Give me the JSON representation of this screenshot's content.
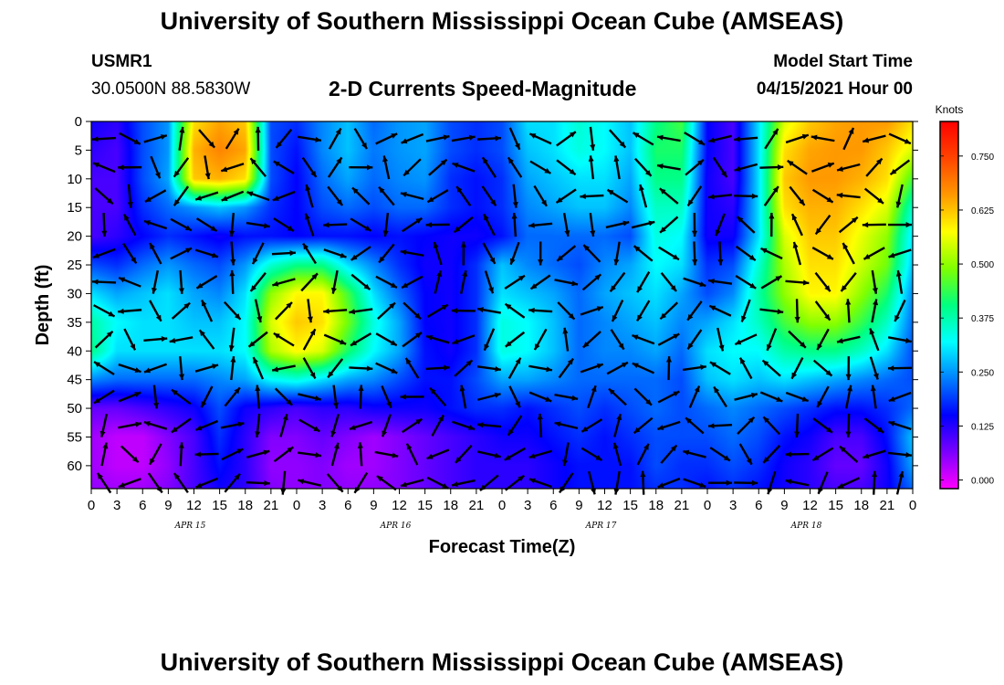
{
  "header": {
    "title": "University of Southern Mississippi Ocean Cube (AMSEAS)",
    "station": "USMR1",
    "location": "30.0500N  88.5830W",
    "subtitle": "2-D Currents Speed-Magnitude",
    "model_start_label": "Model Start Time",
    "model_start_value": "04/15/2021 Hour 00"
  },
  "footer": {
    "title": "University of Southern Mississippi Ocean Cube (AMSEAS)"
  },
  "chart_data": {
    "type": "heatmap",
    "title": "2-D Currents Speed-Magnitude",
    "xlabel": "Forecast Time(Z)",
    "ylabel": "Depth (ft)",
    "x_tick_labels": [
      "0",
      "3",
      "6",
      "9",
      "12",
      "15",
      "18",
      "21",
      "0",
      "3",
      "6",
      "9",
      "12",
      "15",
      "18",
      "21",
      "0",
      "3",
      "6",
      "9",
      "12",
      "15",
      "18",
      "21",
      "0",
      "3",
      "6",
      "9",
      "12",
      "15",
      "18",
      "21",
      "0"
    ],
    "x_hours_since_start": [
      0,
      3,
      6,
      9,
      12,
      15,
      18,
      21,
      24,
      27,
      30,
      33,
      36,
      39,
      42,
      45,
      48,
      51,
      54,
      57,
      60,
      63,
      66,
      69,
      72,
      75,
      78,
      81,
      84,
      87,
      90,
      93,
      96
    ],
    "day_labels": [
      {
        "text": "APR 15",
        "hour": 12
      },
      {
        "text": "APR 16",
        "hour": 36
      },
      {
        "text": "APR 17",
        "hour": 60
      },
      {
        "text": "APR 18",
        "hour": 84
      }
    ],
    "y_tick_labels": [
      "0",
      "5",
      "10",
      "15",
      "20",
      "25",
      "30",
      "35",
      "40",
      "45",
      "50",
      "55",
      "60"
    ],
    "y_ticks": [
      0,
      5,
      10,
      15,
      20,
      25,
      30,
      35,
      40,
      45,
      50,
      55,
      60
    ],
    "ylim": [
      0,
      64
    ],
    "xlim": [
      0,
      96
    ],
    "y_inverted": true,
    "colorbar": {
      "unit": "Knots",
      "tick_labels": [
        "0.750",
        "0.625",
        "0.500",
        "0.375",
        "0.250",
        "0.125",
        "0.000"
      ],
      "ticks": [
        0.75,
        0.625,
        0.5,
        0.375,
        0.25,
        0.125,
        0.0
      ],
      "range": [
        -0.02,
        0.83
      ],
      "colors": [
        "#ff00ff",
        "#7a00ff",
        "#0000ff",
        "#0080ff",
        "#00ffff",
        "#00ff80",
        "#80ff00",
        "#ffff00",
        "#ff9900",
        "#ff4400",
        "#ff0000"
      ]
    },
    "depths": [
      0,
      5,
      10,
      15,
      20,
      25,
      30,
      35,
      40,
      45,
      50,
      55,
      60,
      64
    ],
    "speed_grid": [
      [
        0.14,
        0.12,
        0.2,
        0.25,
        0.6,
        0.65,
        0.62,
        0.2,
        0.18,
        0.24,
        0.28,
        0.22,
        0.25,
        0.26,
        0.2,
        0.18,
        0.2,
        0.3,
        0.3,
        0.35,
        0.32,
        0.28,
        0.4,
        0.45,
        0.15,
        0.1,
        0.3,
        0.55,
        0.62,
        0.65,
        0.66,
        0.66,
        0.6
      ],
      [
        0.12,
        0.1,
        0.2,
        0.25,
        0.64,
        0.68,
        0.65,
        0.2,
        0.16,
        0.24,
        0.28,
        0.23,
        0.25,
        0.26,
        0.2,
        0.18,
        0.2,
        0.28,
        0.3,
        0.34,
        0.32,
        0.28,
        0.42,
        0.42,
        0.15,
        0.1,
        0.3,
        0.6,
        0.65,
        0.66,
        0.66,
        0.62,
        0.55
      ],
      [
        0.1,
        0.1,
        0.2,
        0.26,
        0.62,
        0.64,
        0.6,
        0.2,
        0.15,
        0.22,
        0.26,
        0.22,
        0.24,
        0.25,
        0.18,
        0.16,
        0.18,
        0.26,
        0.28,
        0.3,
        0.3,
        0.26,
        0.4,
        0.4,
        0.14,
        0.1,
        0.3,
        0.62,
        0.66,
        0.66,
        0.64,
        0.6,
        0.45
      ],
      [
        0.1,
        0.1,
        0.18,
        0.22,
        0.25,
        0.28,
        0.25,
        0.18,
        0.15,
        0.2,
        0.22,
        0.2,
        0.22,
        0.22,
        0.18,
        0.16,
        0.18,
        0.24,
        0.26,
        0.28,
        0.28,
        0.24,
        0.36,
        0.36,
        0.14,
        0.12,
        0.3,
        0.6,
        0.64,
        0.64,
        0.6,
        0.55,
        0.35
      ],
      [
        0.1,
        0.12,
        0.15,
        0.18,
        0.16,
        0.14,
        0.16,
        0.16,
        0.15,
        0.16,
        0.16,
        0.15,
        0.16,
        0.15,
        0.14,
        0.14,
        0.16,
        0.22,
        0.22,
        0.22,
        0.22,
        0.2,
        0.34,
        0.32,
        0.14,
        0.14,
        0.3,
        0.55,
        0.62,
        0.62,
        0.56,
        0.5,
        0.3
      ],
      [
        0.2,
        0.18,
        0.22,
        0.25,
        0.22,
        0.2,
        0.25,
        0.35,
        0.4,
        0.4,
        0.3,
        0.24,
        0.18,
        0.14,
        0.14,
        0.18,
        0.28,
        0.24,
        0.22,
        0.2,
        0.24,
        0.26,
        0.32,
        0.3,
        0.18,
        0.2,
        0.35,
        0.52,
        0.6,
        0.6,
        0.54,
        0.48,
        0.28
      ],
      [
        0.3,
        0.26,
        0.28,
        0.3,
        0.26,
        0.24,
        0.3,
        0.5,
        0.58,
        0.58,
        0.45,
        0.3,
        0.22,
        0.15,
        0.14,
        0.18,
        0.3,
        0.28,
        0.26,
        0.22,
        0.26,
        0.28,
        0.3,
        0.26,
        0.2,
        0.24,
        0.38,
        0.5,
        0.58,
        0.58,
        0.5,
        0.42,
        0.24
      ],
      [
        0.38,
        0.32,
        0.3,
        0.3,
        0.28,
        0.28,
        0.32,
        0.55,
        0.62,
        0.6,
        0.48,
        0.34,
        0.26,
        0.15,
        0.14,
        0.18,
        0.34,
        0.32,
        0.28,
        0.22,
        0.24,
        0.26,
        0.28,
        0.24,
        0.26,
        0.3,
        0.36,
        0.45,
        0.5,
        0.5,
        0.44,
        0.36,
        0.22
      ],
      [
        0.4,
        0.3,
        0.3,
        0.3,
        0.3,
        0.3,
        0.32,
        0.52,
        0.58,
        0.55,
        0.42,
        0.32,
        0.26,
        0.16,
        0.14,
        0.18,
        0.34,
        0.32,
        0.28,
        0.22,
        0.24,
        0.24,
        0.26,
        0.22,
        0.3,
        0.32,
        0.32,
        0.38,
        0.4,
        0.4,
        0.36,
        0.3,
        0.2
      ],
      [
        0.24,
        0.22,
        0.22,
        0.22,
        0.22,
        0.24,
        0.26,
        0.32,
        0.34,
        0.3,
        0.26,
        0.24,
        0.2,
        0.16,
        0.16,
        0.2,
        0.26,
        0.26,
        0.24,
        0.22,
        0.22,
        0.22,
        0.22,
        0.2,
        0.28,
        0.3,
        0.28,
        0.3,
        0.28,
        0.26,
        0.24,
        0.22,
        0.2
      ],
      [
        0.08,
        0.08,
        0.1,
        0.12,
        0.14,
        0.2,
        0.14,
        0.12,
        0.1,
        0.12,
        0.12,
        0.14,
        0.14,
        0.14,
        0.16,
        0.18,
        0.18,
        0.16,
        0.18,
        0.2,
        0.18,
        0.2,
        0.22,
        0.2,
        0.22,
        0.24,
        0.22,
        0.2,
        0.18,
        0.16,
        0.16,
        0.18,
        0.22
      ],
      [
        0.04,
        0.02,
        0.02,
        0.06,
        0.1,
        0.18,
        0.12,
        0.06,
        0.06,
        0.08,
        0.06,
        0.04,
        0.06,
        0.08,
        0.1,
        0.12,
        0.14,
        0.14,
        0.16,
        0.18,
        0.16,
        0.18,
        0.2,
        0.2,
        0.2,
        0.22,
        0.2,
        0.16,
        0.14,
        0.1,
        0.1,
        0.16,
        0.28
      ],
      [
        0.04,
        0.02,
        0.02,
        0.05,
        0.1,
        0.16,
        0.12,
        0.05,
        0.05,
        0.06,
        0.04,
        0.04,
        0.06,
        0.08,
        0.1,
        0.12,
        0.12,
        0.12,
        0.14,
        0.16,
        0.16,
        0.16,
        0.2,
        0.18,
        0.18,
        0.2,
        0.18,
        0.14,
        0.12,
        0.08,
        0.08,
        0.14,
        0.26
      ],
      [
        0.05,
        0.04,
        0.04,
        0.06,
        0.1,
        0.14,
        0.12,
        0.06,
        0.05,
        0.06,
        0.05,
        0.05,
        0.06,
        0.08,
        0.1,
        0.12,
        0.12,
        0.12,
        0.14,
        0.16,
        0.16,
        0.16,
        0.18,
        0.18,
        0.16,
        0.18,
        0.16,
        0.14,
        0.12,
        0.1,
        0.1,
        0.14,
        0.22
      ]
    ]
  }
}
